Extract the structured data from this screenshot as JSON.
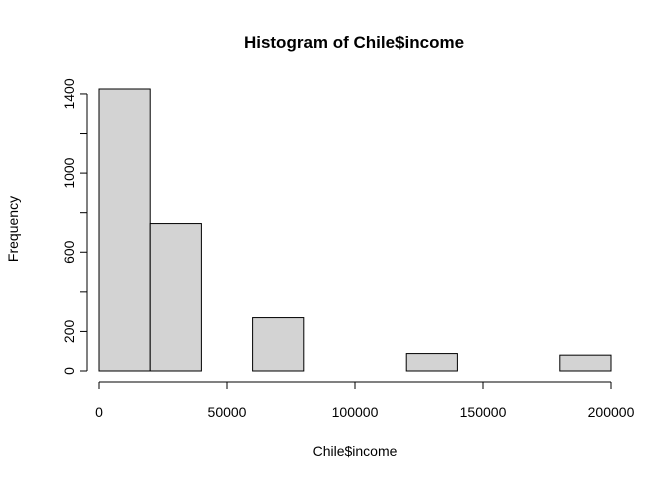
{
  "chart_data": {
    "type": "bar",
    "title": "Histogram of Chile$income",
    "xlabel": "Chile$income",
    "ylabel": "Frequency",
    "bins": [
      {
        "x0": 0,
        "x1": 20000,
        "value": 1425
      },
      {
        "x0": 20000,
        "x1": 40000,
        "value": 745
      },
      {
        "x0": 40000,
        "x1": 60000,
        "value": 0
      },
      {
        "x0": 60000,
        "x1": 80000,
        "value": 270
      },
      {
        "x0": 80000,
        "x1": 100000,
        "value": 0
      },
      {
        "x0": 100000,
        "x1": 120000,
        "value": 0
      },
      {
        "x0": 120000,
        "x1": 140000,
        "value": 88
      },
      {
        "x0": 140000,
        "x1": 160000,
        "value": 0
      },
      {
        "x0": 160000,
        "x1": 180000,
        "value": 0
      },
      {
        "x0": 180000,
        "x1": 200000,
        "value": 80
      }
    ],
    "xlim": [
      0,
      200000
    ],
    "ylim": [
      0,
      1425
    ],
    "xticks": [
      0,
      50000,
      100000,
      150000,
      200000
    ],
    "xtick_labels": [
      "0",
      "50000",
      "100000",
      "150000",
      "200000"
    ],
    "yticks": [
      0,
      200,
      400,
      600,
      800,
      1000,
      1200,
      1400
    ],
    "ytick_labels": [
      "0",
      "200",
      "",
      "600",
      "",
      "1000",
      "",
      "1400"
    ],
    "grid": false,
    "legend": "none",
    "bar_color": "#d3d3d3",
    "edge_color": "#000000"
  }
}
